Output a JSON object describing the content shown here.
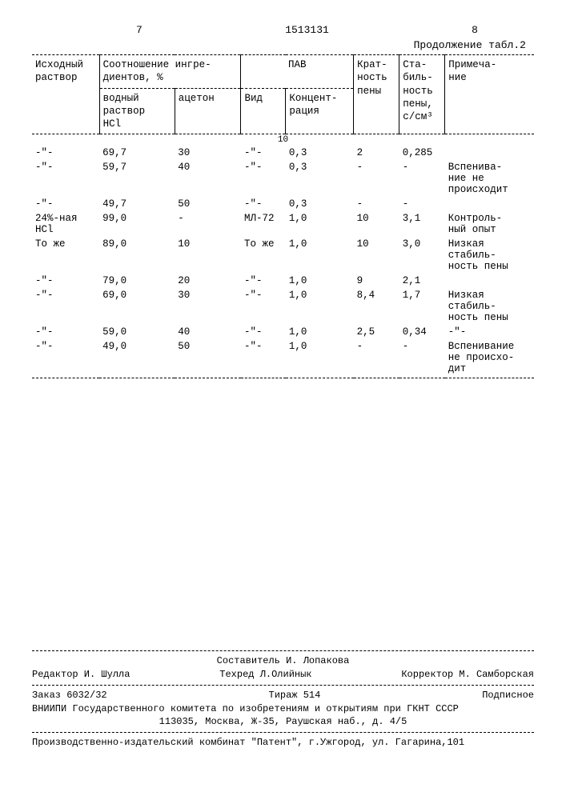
{
  "header": {
    "page_left": "7",
    "doc_number": "1513131",
    "page_right": "8",
    "continuation": "Продолжение табл.2"
  },
  "table": {
    "columns": {
      "c1": "Исходный\nраствор",
      "c2": "Соотношение ингре-\nдиентов, %",
      "c2a": "водный\nраствор\nHCl",
      "c2b": "ацетон",
      "c3": "ПАВ",
      "c3a": "Вид",
      "c3b": "Концент-\nрация",
      "c4": "Крат-\nность\nпены",
      "c5": "Ста-\nбиль-\nность\nпены,\nс/см³",
      "c6": "Примеча-\nние"
    },
    "marker": "10",
    "rows": [
      {
        "c1": "-\"-",
        "c2a": "69,7",
        "c2b": "30",
        "c3a": "-\"-",
        "c3b": "0,3",
        "c4": "2",
        "c5": "0,285",
        "c6": ""
      },
      {
        "c1": "-\"-",
        "c2a": "59,7",
        "c2b": "40",
        "c3a": "-\"-",
        "c3b": "0,3",
        "c4": "-",
        "c5": "-",
        "c6": "Вспенива-\nние не\nпроисходит"
      },
      {
        "c1": "-\"-",
        "c2a": "49,7",
        "c2b": "50",
        "c3a": "-\"-",
        "c3b": "0,3",
        "c4": "-",
        "c5": "-",
        "c6": ""
      },
      {
        "c1": "24%-ная\nHCl",
        "c2a": "99,0",
        "c2b": "-",
        "c3a": "МЛ-72",
        "c3b": "1,0",
        "c4": "10",
        "c5": "3,1",
        "c6": "Контроль-\nный опыт"
      },
      {
        "c1": "То же",
        "c2a": "89,0",
        "c2b": "10",
        "c3a": "То же",
        "c3b": "1,0",
        "c4": "10",
        "c5": "3,0",
        "c6": "Низкая\nстабиль-\nность пены"
      },
      {
        "c1": "-\"-",
        "c2a": "79,0",
        "c2b": "20",
        "c3a": "-\"-",
        "c3b": "1,0",
        "c4": "9",
        "c5": "2,1",
        "c6": ""
      },
      {
        "c1": "-\"-",
        "c2a": "69,0",
        "c2b": "30",
        "c3a": "-\"-",
        "c3b": "1,0",
        "c4": "8,4",
        "c5": "1,7",
        "c6": "Низкая\nстабиль-\nность  пены"
      },
      {
        "c1": "-\"-",
        "c2a": "59,0",
        "c2b": "40",
        "c3a": "-\"-",
        "c3b": "1,0",
        "c4": "2,5",
        "c5": "0,34",
        "c6": "-\"-"
      },
      {
        "c1": "-\"-",
        "c2a": "49,0",
        "c2b": "50",
        "c3a": "-\"-",
        "c3b": "1,0",
        "c4": "-",
        "c5": "-",
        "c6": "Вспенивание\nне происхо-\nдит"
      }
    ]
  },
  "footer": {
    "compiler": "Составитель И. Лопакова",
    "editor": "Редактор И. Шулла",
    "techred": "Техред Л.Олийнык",
    "corrector": "Корректор М. Самборская",
    "order": "Заказ 6032/32",
    "tirage": "Тираж 514",
    "subscription": "Подписное",
    "vniipi": "ВНИИПИ Государственного комитета по изобретениям и открытиям при ГКНТ СССР",
    "address1": "113035, Москва, Ж-35, Раушская наб., д. 4/5",
    "publisher": "Производственно-издательский комбинат \"Патент\", г.Ужгород, ул. Гагарина,101"
  }
}
